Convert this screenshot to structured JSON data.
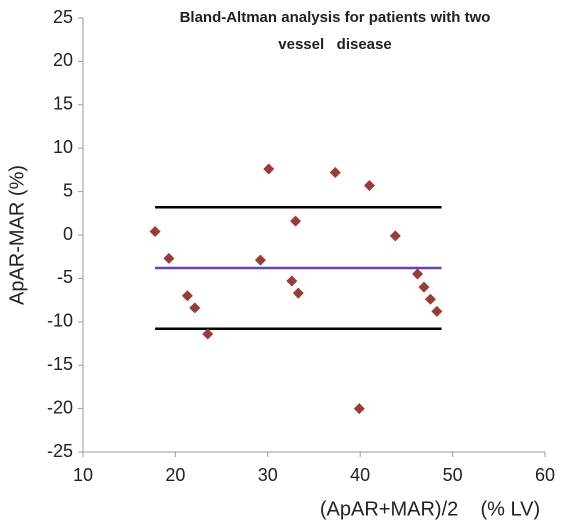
{
  "chart_data": {
    "type": "scatter",
    "title": [
      "Bland-Altman analysis for patients with two",
      "vessel   disease"
    ],
    "xlabel": "(ApAR+MAR)/2    (% LV)",
    "ylabel": "ApAR-MAR (%)",
    "x": [
      17.8,
      19.3,
      21.3,
      22.1,
      23.5,
      29.2,
      30.1,
      32.6,
      33.0,
      33.3,
      37.3,
      39.9,
      41.0,
      43.8,
      46.2,
      46.9,
      47.6,
      48.3
    ],
    "values": [
      0.4,
      -2.7,
      -7.0,
      -8.4,
      -11.4,
      -2.9,
      7.6,
      -5.3,
      1.6,
      -6.7,
      7.2,
      -20.0,
      5.7,
      -0.1,
      -4.5,
      -6.0,
      -7.4,
      -8.8
    ],
    "color": "#9b3b36",
    "reference_lines": [
      {
        "y": 3.2,
        "x": [
          17.8,
          48.8
        ],
        "color": "#000000"
      },
      {
        "y": -3.8,
        "x": [
          17.8,
          48.8
        ],
        "color": "#6a3fc0"
      },
      {
        "y": -10.8,
        "x": [
          17.8,
          48.8
        ],
        "color": "#000000"
      }
    ],
    "xlim": [
      10,
      60
    ],
    "xticks": [
      10,
      20,
      30,
      40,
      50,
      60
    ],
    "ylim": [
      -25,
      25
    ],
    "yticks": [
      -25,
      -20,
      -15,
      -10,
      -5,
      0,
      5,
      10,
      15,
      20,
      25
    ],
    "grid": false
  }
}
